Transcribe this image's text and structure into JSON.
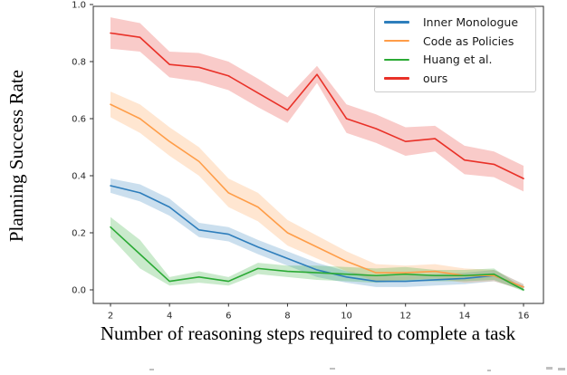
{
  "chart_data": {
    "type": "line",
    "title": "",
    "xlabel": "Number of reasoning steps required to complete a task",
    "ylabel": "Planning Success Rate",
    "x": [
      2,
      3,
      4,
      5,
      6,
      7,
      8,
      9,
      10,
      11,
      12,
      13,
      14,
      15,
      16
    ],
    "xticks": [
      2,
      4,
      6,
      8,
      10,
      12,
      14,
      16
    ],
    "yticks": [
      "0.0",
      "0.2",
      "0.4",
      "0.6",
      "0.8",
      "1.0"
    ],
    "ylim": [
      0.0,
      1.0
    ],
    "xlim": [
      2,
      16
    ],
    "grid": false,
    "legend_position": "upper right",
    "band_style": "shaded confidence interval around each line",
    "series": [
      {
        "name": "Inner Monologue",
        "color": "#2e7ebc",
        "values": [
          0.365,
          0.34,
          0.29,
          0.21,
          0.195,
          0.15,
          0.11,
          0.07,
          0.045,
          0.03,
          0.03,
          0.035,
          0.04,
          0.05,
          0.01
        ],
        "band": [
          0.025,
          0.03,
          0.03,
          0.025,
          0.025,
          0.025,
          0.025,
          0.025,
          0.02,
          0.02,
          0.02,
          0.02,
          0.02,
          0.02,
          0.01
        ]
      },
      {
        "name": "Code as Policies",
        "color": "#ff9d48",
        "values": [
          0.65,
          0.6,
          0.52,
          0.45,
          0.34,
          0.29,
          0.2,
          0.15,
          0.1,
          0.06,
          0.06,
          0.065,
          0.05,
          0.05,
          0.01
        ],
        "band": [
          0.045,
          0.05,
          0.05,
          0.05,
          0.05,
          0.05,
          0.045,
          0.04,
          0.035,
          0.03,
          0.025,
          0.025,
          0.025,
          0.02,
          0.01
        ]
      },
      {
        "name": "Huang et al.",
        "color": "#2baa35",
        "values": [
          0.22,
          0.125,
          0.03,
          0.045,
          0.03,
          0.075,
          0.065,
          0.06,
          0.055,
          0.05,
          0.055,
          0.05,
          0.05,
          0.055,
          0.0
        ],
        "band": [
          0.035,
          0.05,
          0.015,
          0.02,
          0.015,
          0.02,
          0.02,
          0.025,
          0.025,
          0.025,
          0.025,
          0.02,
          0.02,
          0.02,
          0.005
        ]
      },
      {
        "name": "ours",
        "color": "#e93128",
        "values": [
          0.9,
          0.885,
          0.79,
          0.78,
          0.75,
          0.69,
          0.63,
          0.755,
          0.6,
          0.565,
          0.52,
          0.53,
          0.455,
          0.44,
          0.39
        ],
        "band": [
          0.055,
          0.05,
          0.045,
          0.05,
          0.05,
          0.05,
          0.045,
          0.03,
          0.05,
          0.05,
          0.05,
          0.045,
          0.05,
          0.045,
          0.045
        ]
      }
    ]
  }
}
